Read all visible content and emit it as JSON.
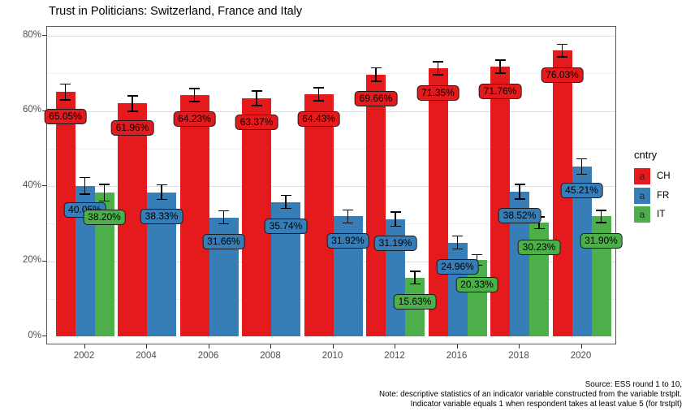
{
  "title": "Trust in Politicians: Switzerland, France and Italy",
  "chart_data": {
    "type": "bar",
    "subtype": "grouped-vertical-with-error-bars-and-value-labels",
    "title": "Trust in Politicians: Switzerland, France and Italy",
    "categories": [
      "2002",
      "2004",
      "2006",
      "2008",
      "2010",
      "2012",
      "2016",
      "2018",
      "2020"
    ],
    "series": [
      {
        "name": "CH",
        "color": "#E41A1C",
        "values": [
          65.05,
          61.96,
          64.23,
          63.37,
          64.43,
          69.66,
          71.35,
          71.76,
          76.03
        ],
        "labels": [
          "65.05%",
          "61.96%",
          "64.23%",
          "63.37%",
          "64.43%",
          "69.66%",
          "71.35%",
          "71.76%",
          "76.03%"
        ],
        "errors": [
          2.3,
          2.2,
          1.9,
          2.1,
          1.9,
          1.9,
          1.9,
          1.9,
          1.8
        ]
      },
      {
        "name": "FR",
        "color": "#377EB8",
        "values": [
          40.05,
          38.33,
          31.66,
          35.74,
          31.92,
          31.19,
          24.96,
          38.52,
          45.21
        ],
        "labels": [
          "40.05%",
          "38.33%",
          "31.66%",
          "35.74%",
          "31.92%",
          "31.19%",
          "24.96%",
          "38.52%",
          "45.21%"
        ],
        "errors": [
          2.4,
          2.1,
          1.9,
          1.9,
          1.9,
          2.0,
          1.9,
          2.1,
          2.2
        ]
      },
      {
        "name": "IT",
        "color": "#4DAF4A",
        "values": [
          38.2,
          null,
          null,
          null,
          null,
          15.63,
          20.33,
          30.23,
          31.9
        ],
        "labels": [
          "38.20%",
          null,
          null,
          null,
          null,
          "15.63%",
          "20.33%",
          "30.23%",
          "31.90%"
        ],
        "errors": [
          2.4,
          null,
          null,
          null,
          null,
          1.8,
          1.6,
          1.7,
          1.8
        ]
      }
    ],
    "y_axis": {
      "ticks": [
        {
          "value": 0,
          "label": "0%"
        },
        {
          "value": 20,
          "label": "20%"
        },
        {
          "value": 40,
          "label": "40%"
        },
        {
          "value": 60,
          "label": "60%"
        },
        {
          "value": 80,
          "label": "80%"
        }
      ],
      "minor": [
        10,
        30,
        50,
        70
      ],
      "ylim": [
        0,
        80
      ]
    },
    "xlabel": "",
    "ylabel": "",
    "grid": true,
    "legend_position": "right",
    "legend": {
      "title": "cntry",
      "key_glyph": "a",
      "items": [
        {
          "label": "CH",
          "color": "#E41A1C"
        },
        {
          "label": "FR",
          "color": "#377EB8"
        },
        {
          "label": "IT",
          "color": "#4DAF4A"
        }
      ]
    }
  },
  "caption": {
    "lines": [
      "Source: ESS round 1 to 10,",
      "Note: descriptive statistics of an indicator variable constructed from the variable trstplt.",
      "Indicator variable equals 1 when respondent takes at least value 5 (for trstplt)"
    ]
  }
}
